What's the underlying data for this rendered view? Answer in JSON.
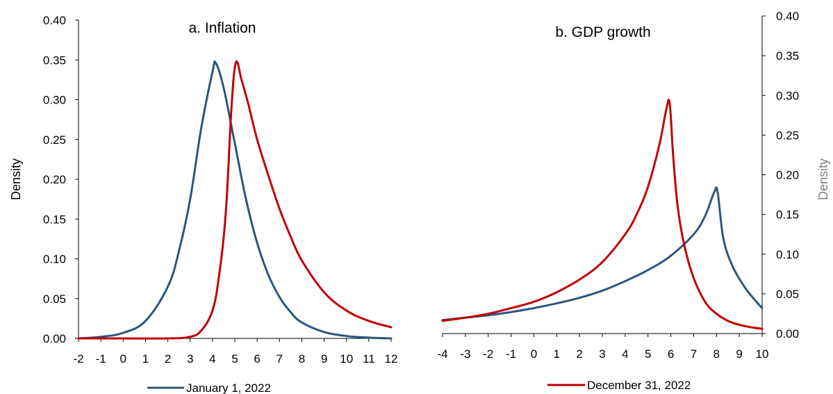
{
  "colors": {
    "jan": "#2d557e",
    "dec": "#c00000",
    "axis": "#000000",
    "right_label": "#808080"
  },
  "chart_data": [
    {
      "type": "line",
      "title": "a. Inflation",
      "xlabel": "",
      "ylabel": "Density",
      "xlim": [
        -2,
        12
      ],
      "ylim": [
        0,
        0.4
      ],
      "x_ticks": [
        "-2",
        "-1",
        "0",
        "1",
        "2",
        "3",
        "4",
        "5",
        "6",
        "7",
        "8",
        "9",
        "10",
        "11",
        "12"
      ],
      "y_ticks": [
        "0.00",
        "0.05",
        "0.10",
        "0.15",
        "0.20",
        "0.25",
        "0.30",
        "0.35",
        "0.40"
      ],
      "grid": false,
      "series": [
        {
          "name": "January 1, 2022",
          "color": "#2d557e",
          "x": [
            -2,
            -1,
            0,
            1,
            2,
            2.5,
            3,
            3.5,
            4,
            4.15,
            4.5,
            5,
            5.5,
            6,
            6.5,
            7,
            7.5,
            8,
            9,
            10,
            11,
            12
          ],
          "y": [
            0.0,
            0.002,
            0.007,
            0.022,
            0.065,
            0.11,
            0.175,
            0.265,
            0.335,
            0.346,
            0.315,
            0.245,
            0.175,
            0.12,
            0.08,
            0.052,
            0.033,
            0.02,
            0.008,
            0.003,
            0.001,
            0.0
          ]
        },
        {
          "name": "December 31, 2022",
          "color": "#c00000",
          "x": [
            -2,
            0,
            2,
            3,
            3.5,
            4,
            4.3,
            4.6,
            4.85,
            5.05,
            5.3,
            5.6,
            6,
            6.5,
            7,
            7.5,
            8,
            9,
            10,
            11,
            12
          ],
          "y": [
            0.0,
            0.0,
            0.0,
            0.002,
            0.01,
            0.035,
            0.08,
            0.16,
            0.29,
            0.347,
            0.325,
            0.295,
            0.25,
            0.205,
            0.163,
            0.128,
            0.098,
            0.058,
            0.035,
            0.022,
            0.014
          ]
        }
      ]
    },
    {
      "type": "line",
      "title": "b. GDP growth",
      "xlabel": "",
      "ylabel": "Density",
      "xlim": [
        -4,
        10
      ],
      "ylim": [
        0,
        0.4
      ],
      "x_ticks": [
        "-4",
        "-3",
        "-2",
        "-1",
        "0",
        "1",
        "2",
        "3",
        "4",
        "5",
        "6",
        "7",
        "8",
        "9",
        "10"
      ],
      "y_ticks": [
        "0.00",
        "0.05",
        "0.10",
        "0.15",
        "0.20",
        "0.25",
        "0.30",
        "0.35",
        "0.40"
      ],
      "grid": false,
      "series": [
        {
          "name": "January 1, 2022",
          "color": "#2d557e",
          "x": [
            -4,
            -3,
            -2,
            -1,
            0,
            1,
            2,
            3,
            4,
            5,
            6,
            7,
            7.5,
            7.9,
            8.05,
            8.3,
            8.7,
            9.2,
            9.6,
            10
          ],
          "y": [
            0.017,
            0.02,
            0.023,
            0.027,
            0.032,
            0.038,
            0.045,
            0.054,
            0.066,
            0.08,
            0.098,
            0.125,
            0.148,
            0.178,
            0.178,
            0.12,
            0.085,
            0.06,
            0.045,
            0.032
          ]
        },
        {
          "name": "December 31, 2022",
          "color": "#c00000",
          "x": [
            -4,
            -3,
            -2,
            -1,
            0,
            1,
            2,
            3,
            4,
            4.5,
            5,
            5.5,
            5.8,
            5.95,
            6.1,
            6.3,
            6.6,
            7,
            7.5,
            8,
            8.5,
            9,
            9.5,
            10
          ],
          "y": [
            0.016,
            0.02,
            0.025,
            0.032,
            0.04,
            0.052,
            0.068,
            0.09,
            0.125,
            0.15,
            0.185,
            0.238,
            0.282,
            0.29,
            0.225,
            0.16,
            0.11,
            0.07,
            0.04,
            0.025,
            0.016,
            0.011,
            0.008,
            0.006
          ]
        }
      ]
    }
  ],
  "legend": {
    "jan_label": "January 1, 2022",
    "dec_label": "December 31, 2022"
  }
}
